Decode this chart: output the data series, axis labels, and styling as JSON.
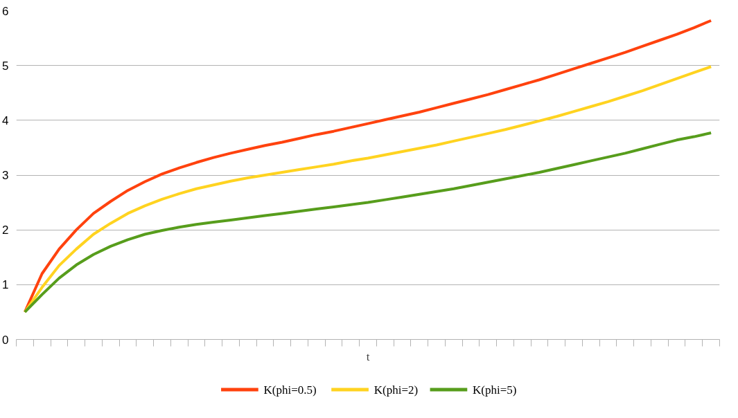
{
  "chart_data": {
    "type": "line",
    "xlabel": "t",
    "categories": [
      null,
      null,
      null,
      null,
      null,
      null,
      null,
      null,
      null,
      null,
      null,
      null,
      null,
      null,
      null,
      null,
      null,
      null,
      null,
      null,
      null,
      null,
      null,
      null,
      null,
      null,
      null,
      null,
      null,
      null,
      null,
      null,
      null,
      null,
      null,
      null,
      null,
      null,
      null,
      null,
      null
    ],
    "series": [
      {
        "name": "K(phi=0.5)",
        "color": "#ff420e",
        "values": [
          0.5,
          1.2,
          1.65,
          2.0,
          2.3,
          2.52,
          2.72,
          2.88,
          3.02,
          3.13,
          3.23,
          3.32,
          3.4,
          3.47,
          3.54,
          3.6,
          3.67,
          3.74,
          3.8,
          3.87,
          3.94,
          4.01,
          4.08,
          4.15,
          4.23,
          4.31,
          4.39,
          4.47,
          4.56,
          4.65,
          4.74,
          4.84,
          4.94,
          5.04,
          5.14,
          5.24,
          5.35,
          5.46,
          5.57,
          5.69,
          5.82
        ]
      },
      {
        "name": "K(phi=2)",
        "color": "#ffd320",
        "values": [
          0.5,
          0.95,
          1.35,
          1.65,
          1.92,
          2.12,
          2.3,
          2.44,
          2.56,
          2.66,
          2.75,
          2.82,
          2.89,
          2.95,
          3.0,
          3.05,
          3.1,
          3.15,
          3.2,
          3.26,
          3.31,
          3.37,
          3.43,
          3.49,
          3.55,
          3.62,
          3.69,
          3.76,
          3.83,
          3.91,
          3.99,
          4.07,
          4.16,
          4.25,
          4.34,
          4.44,
          4.54,
          4.65,
          4.76,
          4.87,
          4.98
        ]
      },
      {
        "name": "K(phi=5)",
        "color": "#579d1c",
        "values": [
          0.5,
          0.82,
          1.12,
          1.36,
          1.55,
          1.7,
          1.82,
          1.92,
          1.99,
          2.05,
          2.1,
          2.14,
          2.18,
          2.22,
          2.26,
          2.3,
          2.34,
          2.38,
          2.42,
          2.46,
          2.5,
          2.55,
          2.6,
          2.65,
          2.7,
          2.75,
          2.81,
          2.87,
          2.93,
          2.99,
          3.05,
          3.12,
          3.19,
          3.26,
          3.33,
          3.4,
          3.48,
          3.56,
          3.64,
          3.7,
          3.77
        ]
      }
    ],
    "ylim": [
      0,
      6
    ],
    "yticks": [
      0,
      1,
      2,
      3,
      4,
      5,
      6
    ],
    "grid": "y",
    "legend": "bottom",
    "marker": "none",
    "line_style": "solid"
  }
}
